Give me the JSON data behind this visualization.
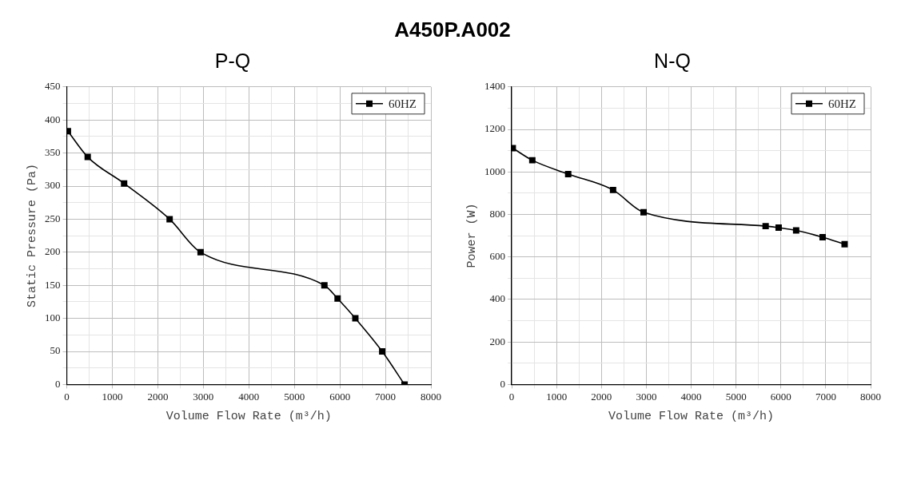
{
  "chart_data": [
    {
      "type": "line",
      "title": "A450P.A002",
      "subtitle": "P-Q",
      "xlabel": "Volume Flow Rate (m³/h)",
      "ylabel": "Static Pressure (Pa)",
      "x": [
        25,
        460,
        1260,
        2260,
        2940,
        5660,
        5950,
        6340,
        6930,
        7420
      ],
      "series": [
        {
          "name": "60HZ",
          "color": "#000000",
          "values": [
            383,
            344,
            304,
            250,
            200,
            150,
            130,
            100,
            50,
            0
          ]
        }
      ],
      "xlim": [
        0,
        8000
      ],
      "xticks": [
        0,
        {
          "value": 500,
          "label": null
        },
        1000,
        {
          "value": 1500,
          "label": null
        },
        2000,
        {
          "value": 2500,
          "label": null
        },
        3000,
        {
          "value": 3500,
          "label": null
        },
        4000,
        {
          "value": 4500,
          "label": null
        },
        5000,
        {
          "value": 5500,
          "label": null
        },
        6000,
        {
          "value": 6500,
          "label": null
        },
        7000,
        {
          "value": 7500,
          "label": null
        },
        8000
      ],
      "ylim": [
        0,
        450
      ],
      "yticks": [
        0,
        {
          "value": 25,
          "label": null
        },
        50,
        {
          "value": 75,
          "label": null
        },
        100,
        {
          "value": 125,
          "label": null
        },
        150,
        {
          "value": 175,
          "label": null
        },
        200,
        {
          "value": 225,
          "label": null
        },
        250,
        {
          "value": 275,
          "label": null
        },
        300,
        {
          "value": 325,
          "label": null
        },
        350,
        {
          "value": 375,
          "label": null
        },
        400,
        {
          "value": 425,
          "label": null
        },
        450
      ],
      "grid": true,
      "legend": "top right",
      "marker": "square",
      "line_style": "solid"
    },
    {
      "type": "line",
      "subtitle": "N-Q",
      "xlabel": "Volume Flow Rate (m³/h)",
      "ylabel": "Power (W)",
      "x": [
        25,
        460,
        1260,
        2260,
        2940,
        5660,
        5950,
        6340,
        6930,
        7420
      ],
      "series": [
        {
          "name": "60HZ",
          "color": "#000000",
          "values": [
            1112,
            1055,
            990,
            915,
            810,
            745,
            738,
            725,
            693,
            660
          ]
        }
      ],
      "xlim": [
        0,
        8000
      ],
      "xticks": [
        0,
        {
          "value": 500,
          "label": null
        },
        1000,
        {
          "value": 1500,
          "label": null
        },
        2000,
        {
          "value": 2500,
          "label": null
        },
        3000,
        {
          "value": 3500,
          "label": null
        },
        4000,
        {
          "value": 4500,
          "label": null
        },
        5000,
        {
          "value": 5500,
          "label": null
        },
        6000,
        {
          "value": 6500,
          "label": null
        },
        7000,
        {
          "value": 7500,
          "label": null
        },
        8000
      ],
      "ylim": [
        0,
        1400
      ],
      "yticks": [
        0,
        {
          "value": 100,
          "label": null
        },
        200,
        {
          "value": 300,
          "label": null
        },
        400,
        {
          "value": 500,
          "label": null
        },
        600,
        {
          "value": 700,
          "label": null
        },
        800,
        {
          "value": 900,
          "label": null
        },
        1000,
        {
          "value": 1100,
          "label": null
        },
        1200,
        {
          "value": 1300,
          "label": null
        },
        1400
      ],
      "grid": true,
      "legend": "top right",
      "marker": "square",
      "line_style": "solid"
    }
  ]
}
